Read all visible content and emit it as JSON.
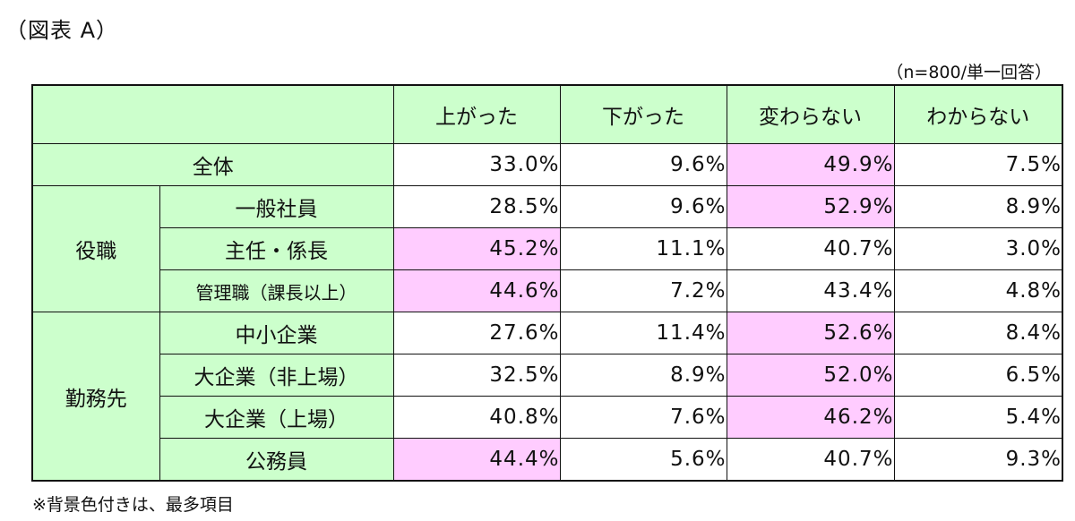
{
  "figure": {
    "label": "（図表 A）"
  },
  "note": "（n=800/単一回答）",
  "footnote": "※背景色付きは、最多項目",
  "colors": {
    "header_bg": "#ccffcc",
    "highlight": "#ffccff",
    "cell_bg": "#ffffff",
    "border": "#111111"
  },
  "chart_data": {
    "type": "table",
    "columns": [
      "上がった",
      "下がった",
      "変わらない",
      "わからない"
    ],
    "rows": [
      {
        "group": "",
        "label": "全体",
        "values": [
          "33.0%",
          "9.6%",
          "49.9%",
          "7.5%"
        ],
        "highlight": [
          false,
          false,
          true,
          false
        ]
      },
      {
        "group": "役職",
        "label": "一般社員",
        "values": [
          "28.5%",
          "9.6%",
          "52.9%",
          "8.9%"
        ],
        "highlight": [
          false,
          false,
          true,
          false
        ]
      },
      {
        "group": "役職",
        "label": "主任・係長",
        "values": [
          "45.2%",
          "11.1%",
          "40.7%",
          "3.0%"
        ],
        "highlight": [
          true,
          false,
          false,
          false
        ]
      },
      {
        "group": "役職",
        "label": "管理職（課長以上）",
        "values": [
          "44.6%",
          "7.2%",
          "43.4%",
          "4.8%"
        ],
        "highlight": [
          true,
          false,
          false,
          false
        ]
      },
      {
        "group": "勤務先",
        "label": "中小企業",
        "values": [
          "27.6%",
          "11.4%",
          "52.6%",
          "8.4%"
        ],
        "highlight": [
          false,
          false,
          true,
          false
        ]
      },
      {
        "group": "勤務先",
        "label": "大企業（非上場）",
        "values": [
          "32.5%",
          "8.9%",
          "52.0%",
          "6.5%"
        ],
        "highlight": [
          false,
          false,
          true,
          false
        ]
      },
      {
        "group": "勤務先",
        "label": "大企業（上場）",
        "values": [
          "40.8%",
          "7.6%",
          "46.2%",
          "5.4%"
        ],
        "highlight": [
          false,
          false,
          true,
          false
        ]
      },
      {
        "group": "勤務先",
        "label": "公務員",
        "values": [
          "44.4%",
          "5.6%",
          "40.7%",
          "9.3%"
        ],
        "highlight": [
          true,
          false,
          false,
          false
        ]
      }
    ],
    "groups": [
      "役職",
      "勤務先"
    ]
  }
}
